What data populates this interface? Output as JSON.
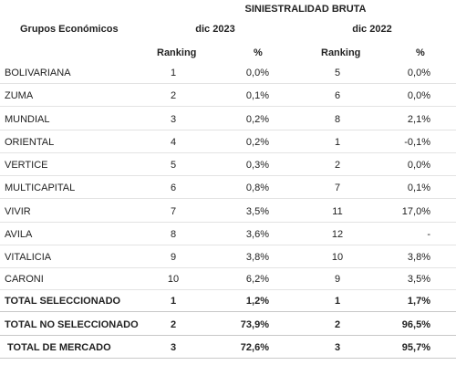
{
  "header": {
    "title": "SINIESTRALIDAD BRUTA",
    "group_label": "Grupos Económicos",
    "year1": "dic 2023",
    "year2": "dic 2022",
    "ranking_label": "Ranking",
    "percent_label": "%"
  },
  "rows": [
    {
      "name": "BOLIVARIANA",
      "r1": "1",
      "p1": "0,0%",
      "r2": "5",
      "p2": "0,0%",
      "bold": false
    },
    {
      "name": "ZUMA",
      "r1": "2",
      "p1": "0,1%",
      "r2": "6",
      "p2": "0,0%",
      "bold": false
    },
    {
      "name": "MUNDIAL",
      "r1": "3",
      "p1": "0,2%",
      "r2": "8",
      "p2": "2,1%",
      "bold": false
    },
    {
      "name": "ORIENTAL",
      "r1": "4",
      "p1": "0,2%",
      "r2": "1",
      "p2": "-0,1%",
      "bold": false
    },
    {
      "name": "VERTICE",
      "r1": "5",
      "p1": "0,3%",
      "r2": "2",
      "p2": "0,0%",
      "bold": false
    },
    {
      "name": "MULTICAPITAL",
      "r1": "6",
      "p1": "0,8%",
      "r2": "7",
      "p2": "0,1%",
      "bold": false
    },
    {
      "name": "VIVIR",
      "r1": "7",
      "p1": "3,5%",
      "r2": "11",
      "p2": "17,0%",
      "bold": false
    },
    {
      "name": "AVILA",
      "r1": "8",
      "p1": "3,6%",
      "r2": "12",
      "p2": "-",
      "bold": false
    },
    {
      "name": "VITALICIA",
      "r1": "9",
      "p1": "3,8%",
      "r2": "10",
      "p2": "3,8%",
      "bold": false
    },
    {
      "name": "CARONI",
      "r1": "10",
      "p1": "6,2%",
      "r2": "9",
      "p2": "3,5%",
      "bold": false
    },
    {
      "name": "TOTAL SELECCIONADO",
      "r1": "1",
      "p1": "1,2%",
      "r2": "1",
      "p2": "1,7%",
      "bold": true
    },
    {
      "name": "TOTAL NO SELECCIONADO",
      "r1": "2",
      "p1": "73,9%",
      "r2": "2",
      "p2": "96,5%",
      "bold": true
    },
    {
      "name": "TOTAL DE MERCADO",
      "r1": "3",
      "p1": "72,6%",
      "r2": "3",
      "p2": "95,7%",
      "bold": true
    }
  ]
}
